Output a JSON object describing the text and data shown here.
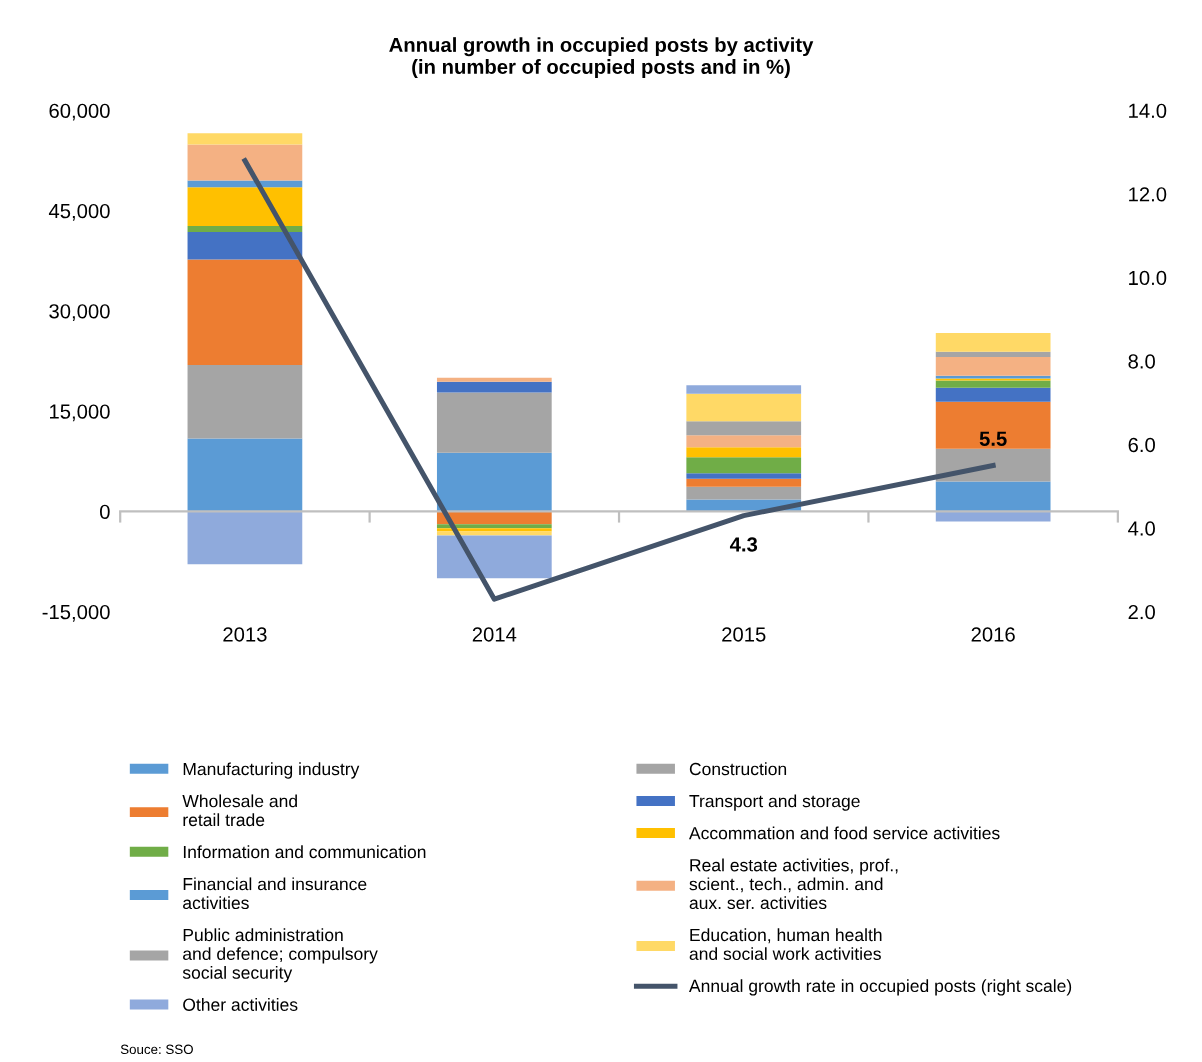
{
  "chart_data": {
    "type": "bar",
    "stacked": true,
    "title": "Annual growth in occupied posts by activity\n(in number of occupied posts and in %)",
    "categories": [
      "2013",
      "2014",
      "2015",
      "2016"
    ],
    "series": [
      {
        "name": "Manufacturing industry",
        "color": "#5b9bd5",
        "values": [
          10900,
          8800,
          1800,
          4500
        ]
      },
      {
        "name": "Construction",
        "color": "#a5a5a5",
        "values": [
          11000,
          9000,
          1900,
          4900
        ]
      },
      {
        "name": "Wholesale and\nretail trade",
        "color": "#ed7d31",
        "values": [
          15800,
          -1900,
          1200,
          7000
        ]
      },
      {
        "name": "Transport and storage",
        "color": "#4472c4",
        "values": [
          4100,
          1600,
          800,
          2100
        ]
      },
      {
        "name": "Information and communication",
        "color": "#70ad47",
        "values": [
          900,
          -600,
          2400,
          1100
        ]
      },
      {
        "name": "Accommation and food service activities",
        "color": "#ffc000",
        "values": [
          5800,
          -500,
          1500,
          300
        ]
      },
      {
        "name": "Financial and insurance\nactivities",
        "color": "#5b9bd5",
        "values": [
          1000,
          0,
          0,
          400
        ]
      },
      {
        "name": "Real estate activities, prof.,\nscient., tech., admin. and\naux. ser. activities",
        "color": "#f4b183",
        "values": [
          5400,
          600,
          1800,
          2800
        ]
      },
      {
        "name": "Public administration\nand defence; compulsory\nsocial security",
        "color": "#a5a5a5",
        "values": [
          0,
          0,
          2100,
          800
        ]
      },
      {
        "name": "Education, human health\nand social work activities",
        "color": "#ffd966",
        "values": [
          1700,
          -600,
          4100,
          2800
        ]
      },
      {
        "name": "Other activities",
        "color": "#8faadc",
        "values": [
          -7900,
          -6400,
          1300,
          -1500
        ]
      },
      {
        "name": "Annual growth rate in occupied posts (right scale)",
        "type": "line",
        "axis": "y2",
        "color": "#44546a",
        "values": [
          12.8,
          2.3,
          4.3,
          5.5
        ],
        "value_labels": [
          null,
          null,
          "4.3",
          "5.5"
        ]
      }
    ],
    "ylim": [
      -15000,
      60000
    ],
    "yticks": [
      {
        "value": -15000,
        "label": "-15,000"
      },
      {
        "value": 0,
        "label": "0"
      },
      {
        "value": 15000,
        "label": "15,000"
      },
      {
        "value": 30000,
        "label": "30,000"
      },
      {
        "value": 45000,
        "label": "45,000"
      },
      {
        "value": 60000,
        "label": "60,000"
      }
    ],
    "y2lim": [
      2,
      14
    ],
    "y2ticks": [
      {
        "value": 2,
        "label": "2.0"
      },
      {
        "value": 4,
        "label": "4.0"
      },
      {
        "value": 6,
        "label": "6.0"
      },
      {
        "value": 8,
        "label": "8.0"
      },
      {
        "value": 10,
        "label": "10.0"
      },
      {
        "value": 12,
        "label": "12.0"
      },
      {
        "value": 14,
        "label": "14.0"
      }
    ],
    "legend": "bottom",
    "marker": "none",
    "line_style": "solid",
    "annotations": [
      "Souce: SSO"
    ]
  }
}
